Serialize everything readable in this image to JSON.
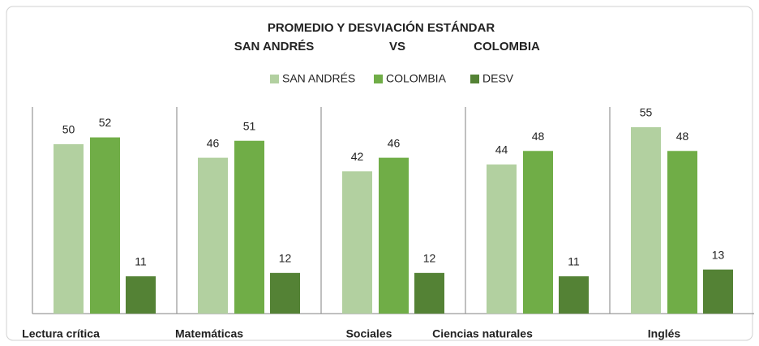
{
  "chart_data": {
    "type": "bar",
    "title": "PROMEDIO Y DESVIACIÓN ESTÁNDAR",
    "subtitle": [
      "SAN ANDRÉS",
      "VS",
      "COLOMBIA"
    ],
    "categories": [
      "Lectura crítica",
      "Matemáticas",
      "Sociales",
      "Ciencias naturales",
      "Inglés"
    ],
    "series": [
      {
        "name": "SAN ANDRÉS",
        "color": "#b2d0a0",
        "values": [
          50,
          46,
          42,
          44,
          55
        ]
      },
      {
        "name": "COLOMBIA",
        "color": "#70ad47",
        "values": [
          52,
          51,
          46,
          48,
          48
        ]
      },
      {
        "name": "DESV",
        "color": "#548235",
        "values": [
          11,
          12,
          12,
          11,
          13
        ]
      }
    ],
    "legend": "top"
  }
}
